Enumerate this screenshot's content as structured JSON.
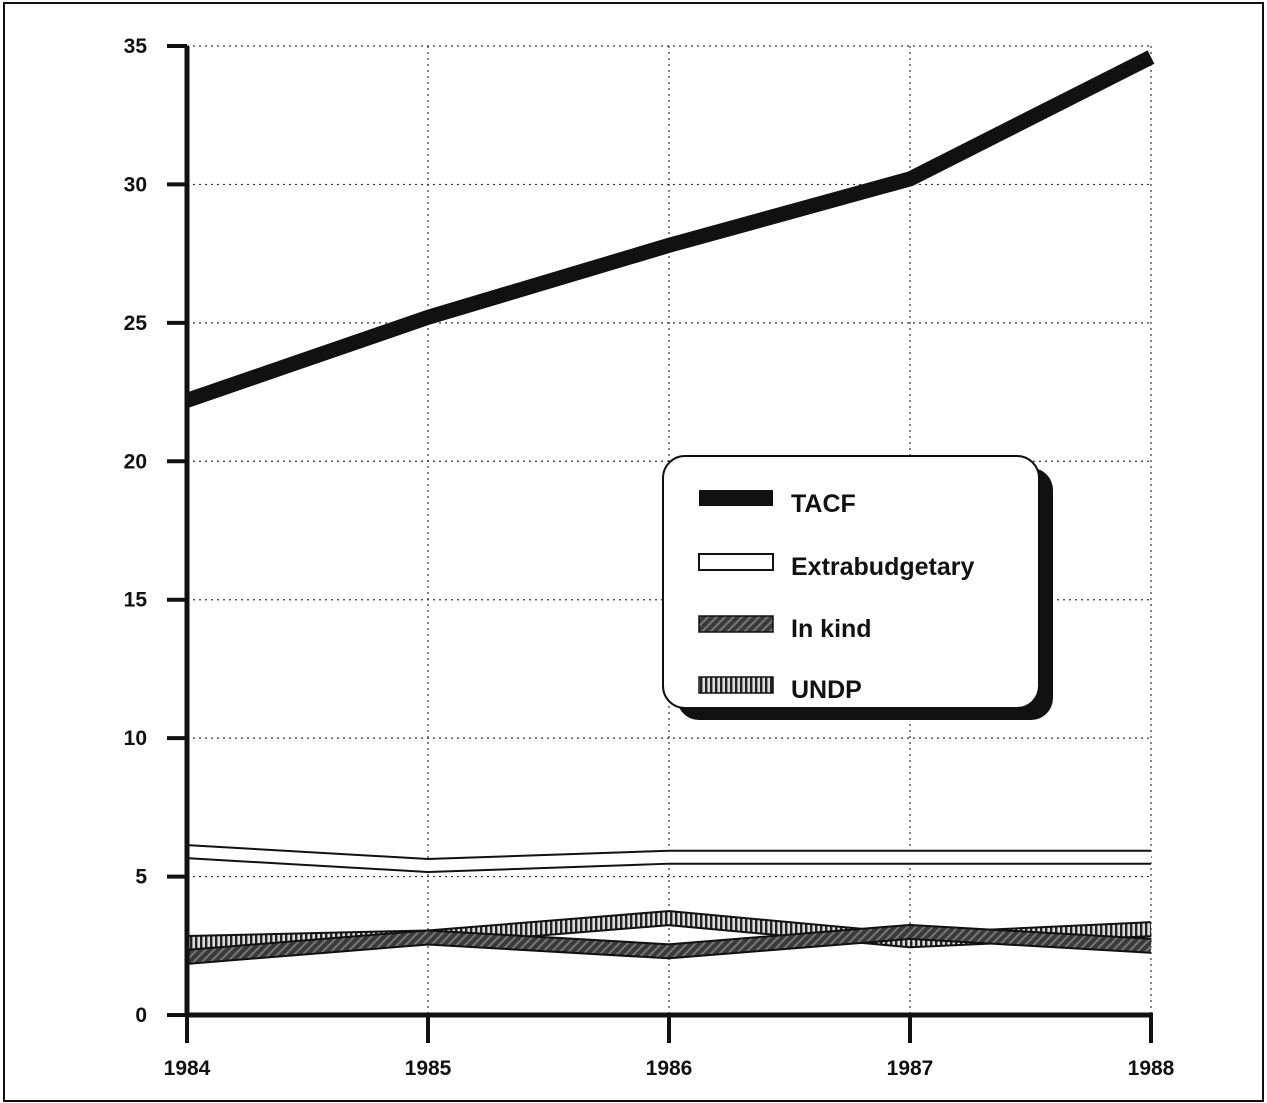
{
  "chart_data": {
    "type": "line",
    "title": "",
    "xlabel": "",
    "ylabel": "",
    "x": [
      "1984",
      "1985",
      "1986",
      "1987",
      "1988"
    ],
    "ylim": [
      0,
      35
    ],
    "yticks": [
      "0",
      "5",
      "10",
      "15",
      "20",
      "25",
      "30",
      "35"
    ],
    "grid": true,
    "legend_placement": "center-right",
    "series": [
      {
        "name": "TACF",
        "values": [
          22.2,
          25.2,
          27.8,
          30.2,
          34.6
        ],
        "style": "solid-dark",
        "color": "#111111"
      },
      {
        "name": "Extrabudgetary",
        "values": [
          5.9,
          5.4,
          5.7,
          5.7,
          5.7
        ],
        "style": "hollow",
        "color": "#ffffff"
      },
      {
        "name": "In kind",
        "values": [
          2.1,
          2.8,
          2.3,
          3.0,
          2.5
        ],
        "style": "dark-hatched",
        "color": "#2a2a2a"
      },
      {
        "name": "UNDP",
        "values": [
          2.6,
          2.8,
          3.5,
          2.7,
          3.1
        ],
        "style": "striped",
        "color": "#777777"
      }
    ]
  }
}
